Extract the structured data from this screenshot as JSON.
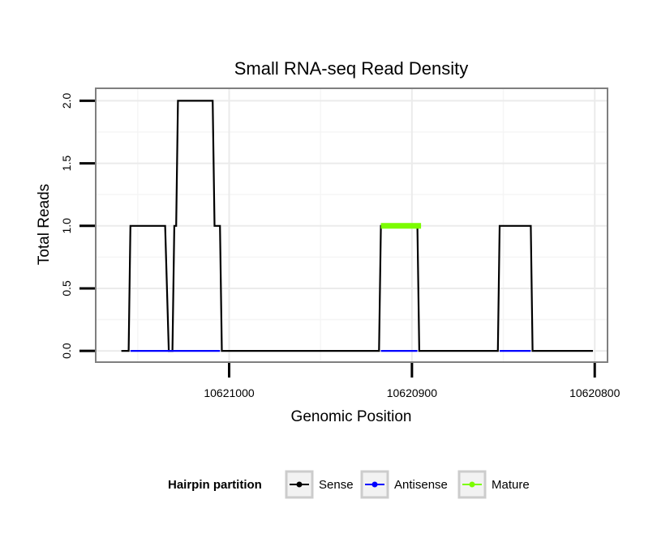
{
  "chart_data": {
    "type": "line",
    "title": "Small RNA-seq Read Density",
    "xlabel": "Genomic Position",
    "ylabel": "Total Reads",
    "x_reversed": true,
    "xlim": [
      10621073,
      10620793
    ],
    "ylim": [
      -0.09,
      2.1
    ],
    "x_ticks": [
      10621000,
      10620900,
      10620800
    ],
    "x_tick_labels": [
      "10621000",
      "10620900",
      "10620800"
    ],
    "y_ticks": [
      0.0,
      0.5,
      1.0,
      1.5,
      2.0
    ],
    "y_tick_labels": [
      "0.0",
      "0.5",
      "1.0",
      "1.5",
      "2.0"
    ],
    "grid": true,
    "legend": {
      "title": "Hairpin partition",
      "position": "bottom",
      "entries": [
        {
          "name": "Sense",
          "color": "#000000"
        },
        {
          "name": "Antisense",
          "color": "#0000ff"
        },
        {
          "name": "Mature",
          "color": "#7cfc00"
        }
      ]
    },
    "series": [
      {
        "name": "Sense",
        "color": "#000000",
        "points": [
          [
            10621059,
            0
          ],
          [
            10621055,
            0
          ],
          [
            10621054,
            1
          ],
          [
            10621035,
            1
          ],
          [
            10621033,
            0
          ],
          [
            10621031,
            0
          ],
          [
            10621030,
            1
          ],
          [
            10621029,
            1
          ],
          [
            10621028,
            2
          ],
          [
            10621009,
            2
          ],
          [
            10621008,
            1
          ],
          [
            10621005,
            1
          ],
          [
            10621004,
            0
          ],
          [
            10620918,
            0
          ],
          [
            10620917,
            1
          ],
          [
            10620897,
            1
          ],
          [
            10620896,
            0
          ],
          [
            10620853,
            0
          ],
          [
            10620852,
            1
          ],
          [
            10620835,
            1
          ],
          [
            10620834,
            0
          ],
          [
            10620801,
            0
          ]
        ]
      },
      {
        "name": "Antisense",
        "color": "#0000ff",
        "segments": [
          [
            [
              10621054,
              0
            ],
            [
              10621005,
              0
            ]
          ],
          [
            [
              10620917,
              0
            ],
            [
              10620897,
              0
            ]
          ],
          [
            [
              10620852,
              0
            ],
            [
              10620835,
              0
            ]
          ]
        ]
      },
      {
        "name": "Mature",
        "color": "#7cfc00",
        "segments": [
          [
            [
              10620917,
              1
            ],
            [
              10620895,
              1
            ]
          ]
        ]
      }
    ]
  },
  "colors": {
    "panel_border": "#7f7f7f",
    "grid_major": "#ebebeb",
    "grid_minor": "#f5f5f5"
  }
}
